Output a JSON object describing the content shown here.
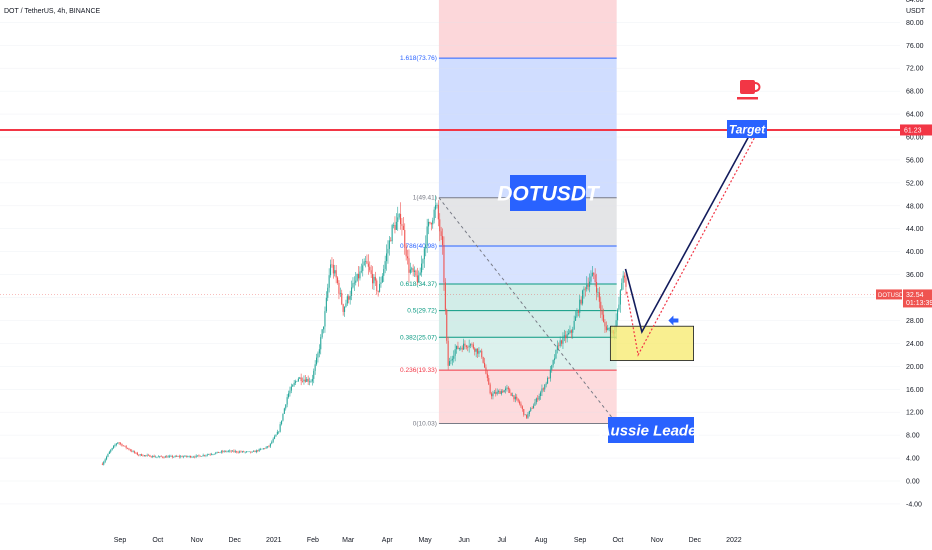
{
  "header": {
    "symbol_line": "DOT / TetherUS, 4h, BINANCE",
    "currency": "USDT"
  },
  "colors": {
    "up": "#26a69a",
    "down": "#ef5350",
    "fib_red": "#f23645",
    "fib_blue": "#2962ff",
    "fib_green": "#089981",
    "fib_gray": "#787b86",
    "target_line": "#f23645",
    "box_yellow": "#f7e96b",
    "label_blue": "#2962ff",
    "arrow_navy": "#131c5c"
  },
  "chart_data": {
    "type": "candlestick",
    "y_axis": {
      "ticks": [
        "-4.00",
        "0.00",
        "4.00",
        "8.00",
        "12.00",
        "16.00",
        "20.00",
        "24.00",
        "28.00",
        "32.00",
        "36.00",
        "40.00",
        "44.00",
        "48.00",
        "52.00",
        "56.00",
        "60.00",
        "64.00",
        "68.00",
        "72.00",
        "76.00",
        "80.00",
        "84.00"
      ],
      "range": [
        -4.7,
        87.5
      ]
    },
    "x_axis": {
      "ticks": [
        "Sep",
        "Oct",
        "Nov",
        "Dec",
        "2021",
        "Feb",
        "Mar",
        "Apr",
        "May",
        "Jun",
        "Jul",
        "Aug",
        "Sep",
        "Oct",
        "Nov",
        "Dec",
        "2022"
      ]
    },
    "price_path": [
      [
        "2020-08-18",
        3.0
      ],
      [
        "2020-08-24",
        5.2
      ],
      [
        "2020-08-30",
        6.8
      ],
      [
        "2020-09-06",
        5.8
      ],
      [
        "2020-09-15",
        4.6
      ],
      [
        "2020-10-01",
        4.2
      ],
      [
        "2020-11-01",
        4.3
      ],
      [
        "2020-11-24",
        5.2
      ],
      [
        "2020-12-15",
        5.0
      ],
      [
        "2020-12-28",
        6.0
      ],
      [
        "2021-01-05",
        8.8
      ],
      [
        "2021-01-12",
        15.0
      ],
      [
        "2021-01-20",
        18.0
      ],
      [
        "2021-01-31",
        17.5
      ],
      [
        "2021-02-05",
        22.0
      ],
      [
        "2021-02-10",
        28.0
      ],
      [
        "2021-02-15",
        38.0
      ],
      [
        "2021-02-20",
        35.0
      ],
      [
        "2021-02-25",
        30.0
      ],
      [
        "2021-03-05",
        34.0
      ],
      [
        "2021-03-15",
        38.0
      ],
      [
        "2021-03-25",
        33.0
      ],
      [
        "2021-04-05",
        44.0
      ],
      [
        "2021-04-12",
        46.0
      ],
      [
        "2021-04-18",
        37.0
      ],
      [
        "2021-04-26",
        35.0
      ],
      [
        "2021-05-03",
        44.0
      ],
      [
        "2021-05-10",
        48.0
      ],
      [
        "2021-05-15",
        40.0
      ],
      [
        "2021-05-19",
        20.0
      ],
      [
        "2021-05-25",
        23.0
      ],
      [
        "2021-06-05",
        24.0
      ],
      [
        "2021-06-15",
        22.0
      ],
      [
        "2021-06-22",
        15.0
      ],
      [
        "2021-07-05",
        16.0
      ],
      [
        "2021-07-15",
        13.5
      ],
      [
        "2021-07-20",
        11.0
      ],
      [
        "2021-07-28",
        14.0
      ],
      [
        "2021-08-07",
        18.0
      ],
      [
        "2021-08-15",
        24.0
      ],
      [
        "2021-08-25",
        26.0
      ],
      [
        "2021-09-05",
        34.0
      ],
      [
        "2021-09-12",
        36.0
      ],
      [
        "2021-09-20",
        27.0
      ],
      [
        "2021-09-28",
        26.0
      ],
      [
        "2021-10-02",
        31.0
      ],
      [
        "2021-10-05",
        36.5
      ],
      [
        "2021-10-08",
        32.5
      ]
    ],
    "last_price": 32.54,
    "price_label": "DOTUSDT",
    "countdown": "01:13:39",
    "fib_retracement": {
      "x_range": [
        "2021-05-12",
        "2021-09-30"
      ],
      "levels": [
        {
          "ratio": "1.618",
          "price": 73.76,
          "label": "1.618(73.76)"
        },
        {
          "ratio": "1",
          "price": 49.41,
          "label": "1(49.41)"
        },
        {
          "ratio": "0.786",
          "price": 40.98,
          "label": "0.786(40.98)"
        },
        {
          "ratio": "0.618",
          "price": 34.37,
          "label": "0.618(34.37)"
        },
        {
          "ratio": "0.5",
          "price": 29.72,
          "label": "0.5(29.72)"
        },
        {
          "ratio": "0.382",
          "price": 25.07,
          "label": "0.382(25.07)"
        },
        {
          "ratio": "0.236",
          "price": 19.33,
          "label": "0.236(19.33)"
        },
        {
          "ratio": "0",
          "price": 10.03,
          "label": "0(10.03)"
        }
      ]
    },
    "target_level": 61.23,
    "target_level_label": "61.23",
    "support_zone": {
      "x_range": [
        "2021-09-25",
        "2021-11-30"
      ],
      "y_range": [
        21.0,
        27.0
      ]
    },
    "projection_solid": [
      [
        "2021-10-07",
        37.0
      ],
      [
        "2021-10-20",
        26.0
      ],
      [
        "2022-01-15",
        61.0
      ]
    ],
    "projection_dotted": [
      [
        "2021-10-08",
        33.0
      ],
      [
        "2021-10-17",
        22.0
      ],
      [
        "2022-01-20",
        61.0
      ]
    ],
    "annotations": {
      "title": "DOTUSDT",
      "target": "Target",
      "author": "Aussie Leader"
    },
    "teacup_icon": "coffee-cup-icon",
    "arrow_icon": "left-arrow-icon"
  }
}
